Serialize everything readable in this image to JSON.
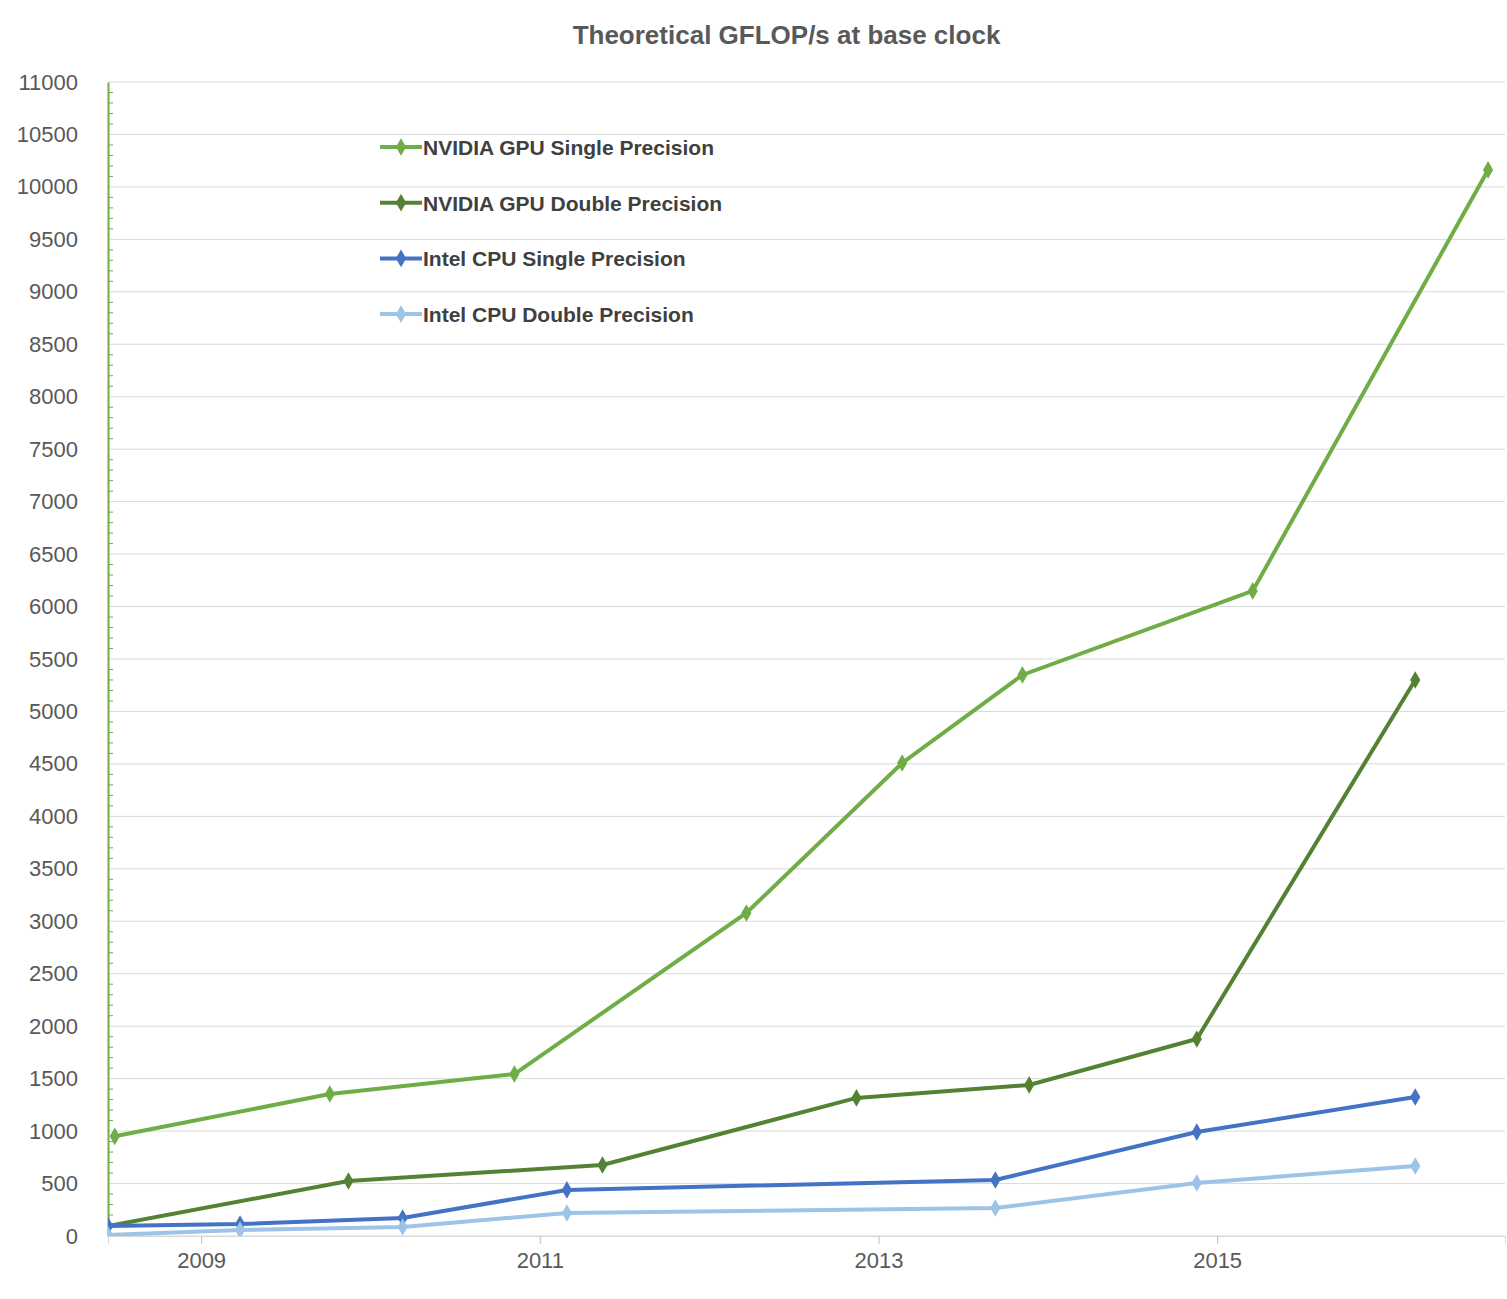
{
  "chart_data": {
    "type": "line",
    "title": "Theoretical GFLOP/s at base clock",
    "xlim": [
      2008.45,
      2016.7
    ],
    "xticks": [
      2009,
      2011,
      2013,
      2015
    ],
    "ylim": [
      0,
      11000
    ],
    "yticks": [
      0,
      500,
      1000,
      1500,
      2000,
      2500,
      3000,
      3500,
      4000,
      4500,
      5000,
      5500,
      6000,
      6500,
      7000,
      7500,
      8000,
      8500,
      9000,
      9500,
      10000,
      10500,
      11000
    ],
    "grid": true,
    "legend": "upper left",
    "series": [
      {
        "name": "NVIDIA GPU Single Precision",
        "color": "#70ad47",
        "marker": "diamond",
        "x": [
          2008.49,
          2009.76,
          2010.85,
          2012.22,
          2013.14,
          2013.85,
          2015.21,
          2016.6
        ],
        "values": [
          950,
          1354,
          1544,
          3079,
          4509,
          5348,
          6149,
          10162
        ]
      },
      {
        "name": "NVIDIA GPU Double Precision",
        "color": "#548235",
        "marker": "diamond",
        "x": [
          2008.45,
          2009.87,
          2011.37,
          2012.87,
          2013.89,
          2014.88,
          2016.17
        ],
        "values": [
          95,
          524,
          677,
          1316,
          1440,
          1878,
          5300
        ]
      },
      {
        "name": "Intel CPU Single Precision",
        "color": "#4472c4",
        "marker": "diamond",
        "x": [
          2008.45,
          2009.23,
          2010.19,
          2011.16,
          2013.69,
          2014.88,
          2016.17
        ],
        "values": [
          95,
          114,
          172,
          439,
          534,
          991,
          1325
        ]
      },
      {
        "name": "Intel CPU Double Precision",
        "color": "#9dc3e6",
        "marker": "diamond",
        "x": [
          2008.45,
          2009.23,
          2010.19,
          2011.16,
          2013.69,
          2014.88,
          2016.17
        ],
        "values": [
          10,
          57,
          86,
          219,
          267,
          505,
          667
        ]
      }
    ]
  }
}
